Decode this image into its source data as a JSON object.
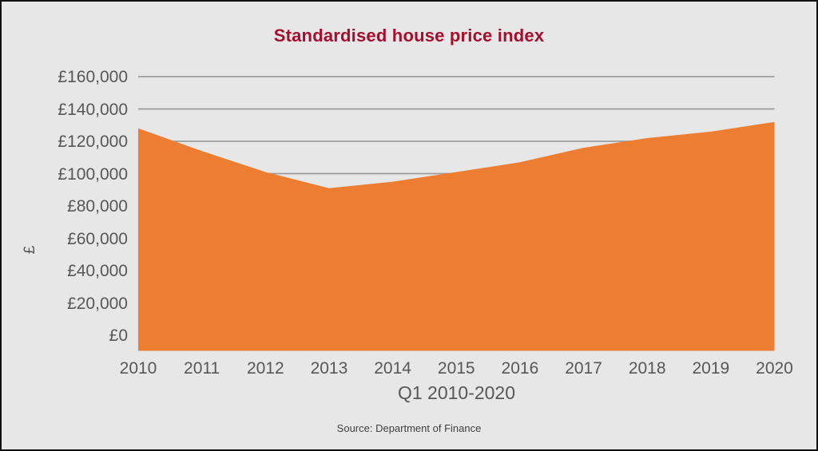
{
  "source_note": "Source: Department of Finance",
  "colors": {
    "title": "#a50e2d",
    "area": "#ed7d31",
    "background": "#e7e7e7",
    "gridline": "#9c9c9c",
    "axis_text": "#575757",
    "source_text": "#3f3f3f",
    "frame_border": "#111111"
  },
  "chart_data": {
    "type": "area",
    "title": "Standardised house price index",
    "xlabel": "Q1 2010-2020",
    "ylabel": "£",
    "categories": [
      "2010",
      "2011",
      "2012",
      "2013",
      "2014",
      "2015",
      "2016",
      "2017",
      "2018",
      "2019",
      "2020"
    ],
    "values": [
      128000,
      114000,
      101000,
      91000,
      95000,
      101000,
      107000,
      116000,
      122000,
      126000,
      132000
    ],
    "ylim": [
      0,
      160000
    ],
    "ytick_step": 20000,
    "ytick_labels": [
      "£0",
      "£20,000",
      "£40,000",
      "£60,000",
      "£80,000",
      "£100,000",
      "£120,000",
      "£140,000",
      "£160,000"
    ],
    "grid": true,
    "legend_position": "none",
    "series_color": "#ed7d31"
  }
}
